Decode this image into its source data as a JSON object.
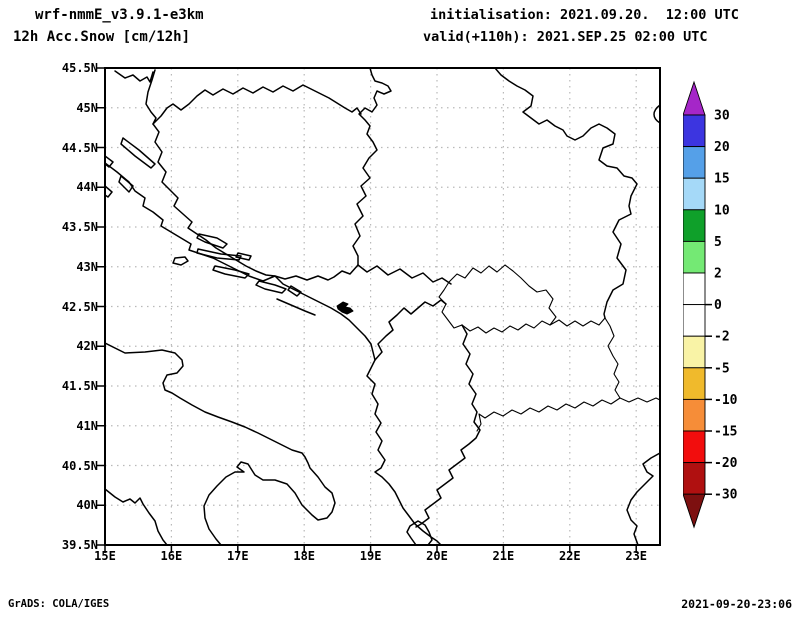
{
  "header": {
    "model_title": "wrf-nmmE_v3.9.1-e3km",
    "product_title": "12h Acc.Snow [cm/12h]",
    "initialisation": "initialisation: 2021.09.20.  12:00 UTC",
    "valid": "valid(+110h): 2021.SEP.25 02:00 UTC"
  },
  "footer": {
    "left": "GrADS: COLA/IGES",
    "right": "2021-09-20-23:06"
  },
  "chart_data": {
    "type": "map",
    "title": "12h Acc.Snow [cm/12h]",
    "subtitle": "wrf-nmmE_v3.9.1-e3km forecast map, Balkans / Adriatic domain",
    "x_axis": {
      "ticks": [
        "15E",
        "16E",
        "17E",
        "18E",
        "19E",
        "20E",
        "21E",
        "22E",
        "23E"
      ],
      "range_deg_east": [
        15,
        23.4
      ],
      "gridlines": "dotted gray at every 1 degree"
    },
    "y_axis": {
      "ticks": [
        "45.5N",
        "45N",
        "44.5N",
        "44N",
        "43.5N",
        "43N",
        "42.5N",
        "42N",
        "41.5N",
        "41N",
        "40.5N",
        "40N",
        "39.5N"
      ],
      "range_deg_north": [
        39.5,
        45.5
      ],
      "gridlines": "dotted gray at every 0.5 degree"
    },
    "colorbar": {
      "units": "cm/12h",
      "levels_top_to_bottom": [
        "30",
        "20",
        "15",
        "10",
        "5",
        "2",
        "0",
        "-2",
        "-5",
        "-10",
        "-15",
        "-20",
        "-30"
      ],
      "colors_top_to_bottom": [
        "#a526c8",
        "#3c35e0",
        "#55a0e8",
        "#a5d9f8",
        "#0fa02a",
        "#74e974",
        "#ffffff",
        "#ffffff",
        "#f9f3a6",
        "#f0ba2c",
        "#f68d38",
        "#f20d0d",
        "#b01010",
        "#7d1010"
      ],
      "legend_position": "right"
    },
    "values_shown": "no shaded snow accumulation anywhere in the domain; map area is entirely white (below lowest positive contour of 2)"
  }
}
